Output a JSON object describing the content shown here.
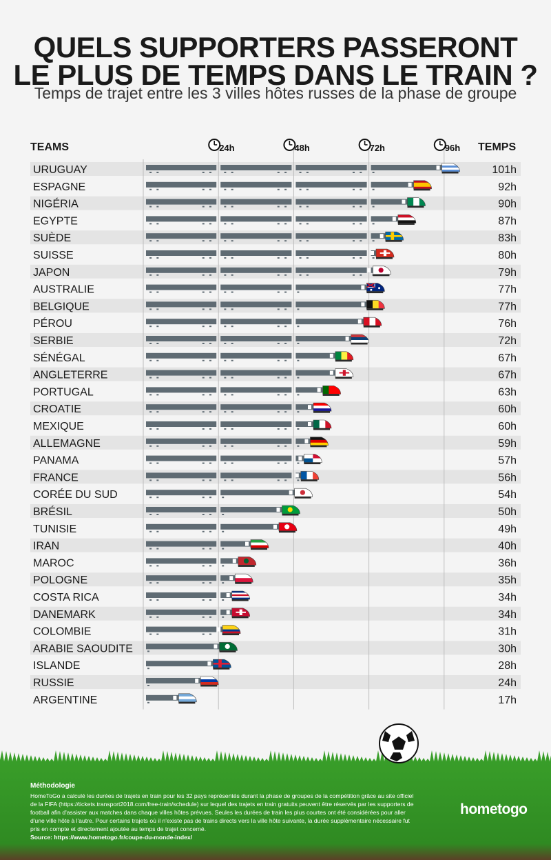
{
  "title_line1": "QUELS SUPPORTERS PASSERONT",
  "title_line2": "LE PLUS DE TEMPS DANS LE TRAIN ?",
  "subtitle": "Temps de trajet entre les 3 villes hôtes russes de la phase de groupe",
  "col_teams": "TEAMS",
  "col_time": "TEMPS",
  "time_unit": "h",
  "methodology": {
    "title": "Méthodologie",
    "text": "HomeToGo a calculé les durées de trajets en train pour les 32 pays représentés durant la phase de groupes de la compétition grâce au site officiel de la FIFA (https://tickets.transport2018.com/free-train/schedule) sur lequel des trajets en train gratuits peuvent être réservés par les supporters de football afin d'assister aux matches dans chaque villes hôtes prévues. Seules les durées de train les plus courtes ont été considérées pour aller d'une ville hôte à l'autre. Pour certains trajets où il n'existe pas de trains directs vers la ville hôte suivante, la durée supplémentaire nécessaire fut pris en compte et directement ajoutée au temps de trajet concerné.",
    "source": "Source: https://www.hometogo.fr/coupe-du-monde-index/"
  },
  "logo": "hometogo",
  "colors": {
    "train": "#5f6b73",
    "grass": "#3f9b2a",
    "soil": "#6a4a2e",
    "row_alt": "#e4e4e4",
    "grid": "#bdbdbd"
  },
  "chart_data": {
    "type": "bar",
    "title": "QUELS SUPPORTERS PASSERONT LE PLUS DE TEMPS DANS LE TRAIN ?",
    "xlabel": "TEMPS",
    "ylabel": "TEAMS",
    "ticks": [
      {
        "value": 24,
        "label": "24h"
      },
      {
        "value": 48,
        "label": "48h"
      },
      {
        "value": 72,
        "label": "72h"
      },
      {
        "value": 96,
        "label": "96h"
      }
    ],
    "xlim": [
      0,
      101
    ],
    "categories": [
      "URUGUAY",
      "ESPAGNE",
      "NIGÉRIA",
      "EGYPTE",
      "SUÈDE",
      "SUISSE",
      "JAPON",
      "AUSTRALIE",
      "BELGIQUE",
      "PÉROU",
      "SERBIE",
      "SÉNÉGAL",
      "ANGLETERRE",
      "PORTUGAL",
      "CROATIE",
      "MEXIQUE",
      "ALLEMAGNE",
      "PANAMA",
      "FRANCE",
      "CORÉE DU SUD",
      "BRÉSIL",
      "TUNISIE",
      "IRAN",
      "MAROC",
      "POLOGNE",
      "COSTA RICA",
      "DANEMARK",
      "COLOMBIE",
      "ARABIE SAOUDITE",
      "ISLANDE",
      "RUSSIE",
      "ARGENTINE"
    ],
    "values": [
      101,
      92,
      90,
      87,
      83,
      80,
      79,
      77,
      77,
      76,
      72,
      67,
      67,
      63,
      60,
      60,
      59,
      57,
      56,
      54,
      50,
      49,
      40,
      36,
      35,
      34,
      34,
      31,
      30,
      28,
      24,
      17
    ],
    "flags": [
      {
        "type": "h",
        "c": [
          "#ffffff",
          "#5b8fd6",
          "#ffffff",
          "#5b8fd6"
        ]
      },
      {
        "type": "h",
        "c": [
          "#c60b1e",
          "#ffc400",
          "#ffc400",
          "#c60b1e"
        ]
      },
      {
        "type": "v",
        "c": [
          "#008751",
          "#ffffff",
          "#008751"
        ]
      },
      {
        "type": "h",
        "c": [
          "#ce1126",
          "#ffffff",
          "#111111"
        ]
      },
      {
        "type": "cross",
        "c": [
          "#006aa7",
          "#fecc00"
        ]
      },
      {
        "type": "plus",
        "c": [
          "#d52b1e",
          "#ffffff"
        ]
      },
      {
        "type": "dot",
        "c": [
          "#ffffff",
          "#bc002d"
        ]
      },
      {
        "type": "aus",
        "c": [
          "#00247d",
          "#ffffff",
          "#cf142b"
        ]
      },
      {
        "type": "v",
        "c": [
          "#111111",
          "#fdda24",
          "#ef3340"
        ]
      },
      {
        "type": "v",
        "c": [
          "#d91023",
          "#ffffff",
          "#d91023"
        ]
      },
      {
        "type": "h",
        "c": [
          "#c6363c",
          "#0c4076",
          "#ffffff"
        ]
      },
      {
        "type": "v",
        "c": [
          "#00853f",
          "#fdef42",
          "#e31b23"
        ]
      },
      {
        "type": "plus",
        "c": [
          "#ffffff",
          "#cf142b"
        ]
      },
      {
        "type": "v",
        "c": [
          "#006600",
          "#ff0000",
          "#ff0000"
        ]
      },
      {
        "type": "h",
        "c": [
          "#ff0000",
          "#ffffff",
          "#171796"
        ]
      },
      {
        "type": "v",
        "c": [
          "#006847",
          "#ffffff",
          "#ce1126"
        ]
      },
      {
        "type": "h",
        "c": [
          "#111111",
          "#dd0000",
          "#ffce00"
        ]
      },
      {
        "type": "quad",
        "c": [
          "#ffffff",
          "#d21034",
          "#005293",
          "#ffffff"
        ]
      },
      {
        "type": "v",
        "c": [
          "#0055a4",
          "#ffffff",
          "#ef4135"
        ]
      },
      {
        "type": "dot",
        "c": [
          "#ffffff",
          "#cd2e3a"
        ]
      },
      {
        "type": "dot",
        "c": [
          "#009c3b",
          "#ffdf00"
        ]
      },
      {
        "type": "dot",
        "c": [
          "#e70013",
          "#ffffff"
        ]
      },
      {
        "type": "h",
        "c": [
          "#239f40",
          "#ffffff",
          "#da0000"
        ]
      },
      {
        "type": "dot",
        "c": [
          "#c1272d",
          "#006233"
        ]
      },
      {
        "type": "h",
        "c": [
          "#ffffff",
          "#dc143c"
        ]
      },
      {
        "type": "h",
        "c": [
          "#002b7f",
          "#ffffff",
          "#ce1126",
          "#ffffff",
          "#002b7f"
        ]
      },
      {
        "type": "plus",
        "c": [
          "#c60c30",
          "#ffffff"
        ]
      },
      {
        "type": "h",
        "c": [
          "#fcd116",
          "#fcd116",
          "#003893",
          "#ce1126"
        ]
      },
      {
        "type": "dot",
        "c": [
          "#006c35",
          "#ffffff"
        ]
      },
      {
        "type": "cross",
        "c": [
          "#02529c",
          "#dc1e35"
        ]
      },
      {
        "type": "h",
        "c": [
          "#ffffff",
          "#0039a6",
          "#d52b1e"
        ]
      },
      {
        "type": "h",
        "c": [
          "#75aadb",
          "#ffffff",
          "#75aadb"
        ]
      }
    ]
  }
}
